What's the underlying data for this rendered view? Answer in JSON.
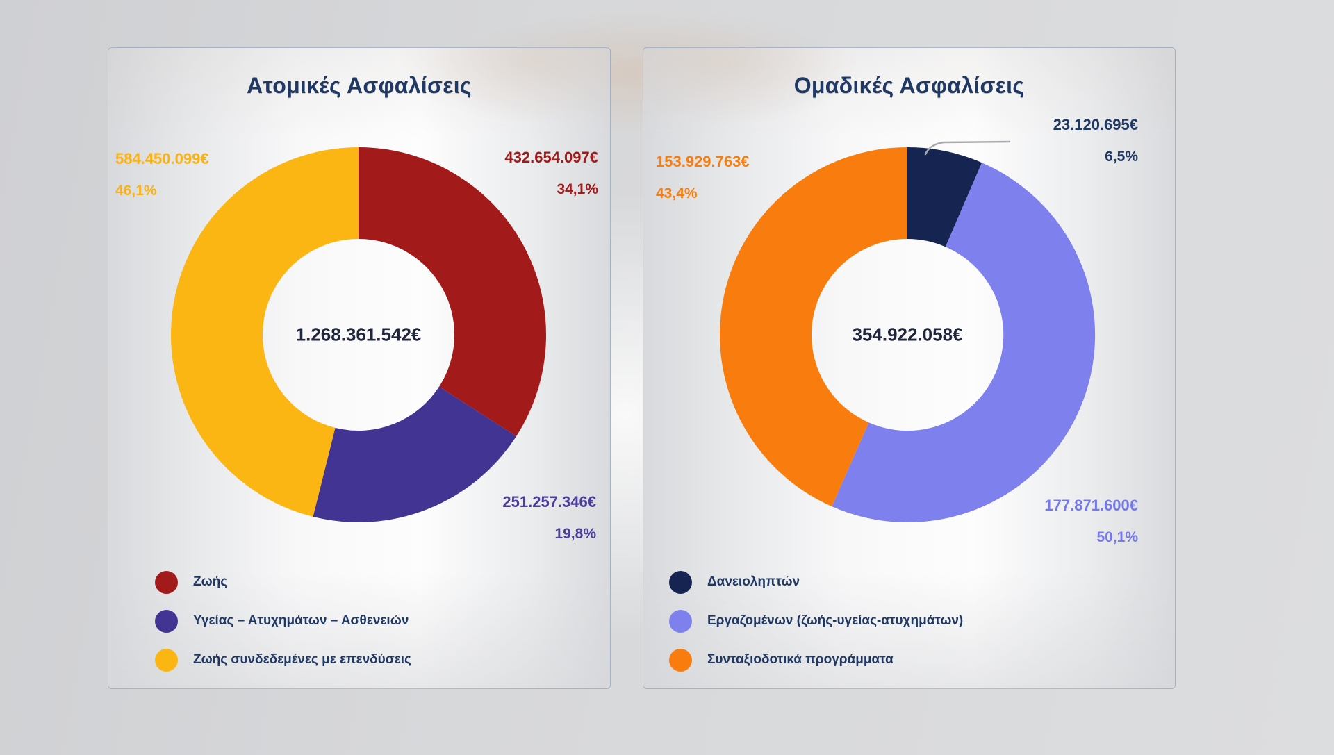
{
  "colors": {
    "page_background": "#D5D6D8",
    "card_border": "#7D91AF",
    "title_text": "#1F3864",
    "center_text": "#20263B",
    "legend_text": "#203864",
    "callout_line": "#A8ABB0"
  },
  "chart_data": [
    {
      "type": "pie",
      "variant": "donut",
      "title": "Ατομικές Ασφαλίσεις",
      "center_total": "1.268.361.542€",
      "total_value": 1268361542,
      "legend_position": "bottom-left",
      "slices": [
        {
          "label": "Ζωής",
          "value": 432654097,
          "value_text": "432.654.097€",
          "pct": 34.1,
          "pct_text": "34,1%",
          "color": "#A31A1A",
          "label_color": "#A31A1A"
        },
        {
          "label": "Υγείας – Ατυχημάτων – Ασθενειών",
          "value": 251257346,
          "value_text": "251.257.346€",
          "pct": 19.8,
          "pct_text": "19,8%",
          "color": "#423493",
          "label_color": "#4B3C9E"
        },
        {
          "label": "Ζωής συνδεδεμένες με επενδύσεις",
          "value": 584450099,
          "value_text": "584.450.099€",
          "pct": 46.1,
          "pct_text": "46,1%",
          "color": "#FCB614",
          "label_color": "#FBB212"
        }
      ]
    },
    {
      "type": "pie",
      "variant": "donut",
      "title": "Ομαδικές Ασφαλίσεις",
      "center_total": "354.922.058€",
      "total_value": 354922058,
      "legend_position": "bottom-left",
      "slices": [
        {
          "label": "Δανειοληπτών",
          "value": 23120695,
          "value_text": "23.120.695€",
          "pct": 6.5,
          "pct_text": "6,5%",
          "color": "#152450",
          "label_color": "#1F3864"
        },
        {
          "label": "Εργαζομένων (ζωής-υγείας-ατυχημάτων)",
          "value": 177871600,
          "value_text": "177.871.600€",
          "pct": 50.1,
          "pct_text": "50,1%",
          "color": "#7E80EE",
          "label_color": "#7478EC"
        },
        {
          "label": "Συνταξιοδοτικά προγράμματα",
          "value": 153929763,
          "value_text": "153.929.763€",
          "pct": 43.4,
          "pct_text": "43,4%",
          "color": "#F97D0E",
          "label_color": "#F97D0E"
        }
      ]
    }
  ]
}
